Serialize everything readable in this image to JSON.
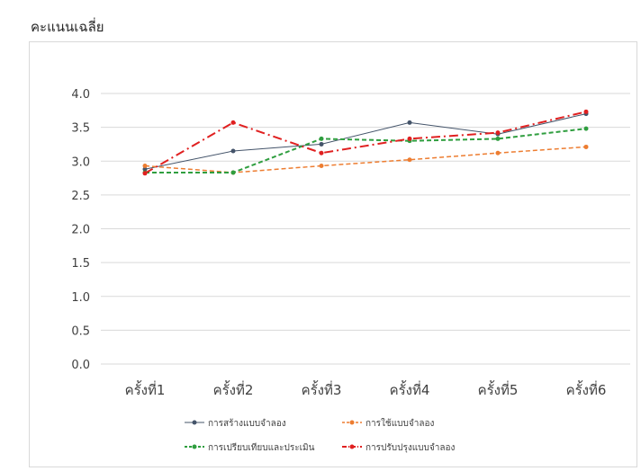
{
  "page": {
    "title": "คะแนนเฉลี่ย"
  },
  "chart_data": {
    "type": "line",
    "title": "",
    "xlabel": "",
    "ylabel": "",
    "categories": [
      "ครั้งที่1",
      "ครั้งที่2",
      "ครั้งที่3",
      "ครั้งที่4",
      "ครั้งที่5",
      "ครั้งที่6"
    ],
    "ylim": [
      0,
      4
    ],
    "yticks": [
      "0.0",
      "0.5",
      "1.0",
      "1.5",
      "2.0",
      "2.5",
      "3.0",
      "3.5",
      "4.0"
    ],
    "ytick_values": [
      0,
      0.5,
      1,
      1.5,
      2,
      2.5,
      3,
      3.5,
      4
    ],
    "grid": true,
    "legend_position": "bottom",
    "series": [
      {
        "name": "การสร้างแบบจำลอง",
        "values": [
          2.88,
          3.15,
          3.25,
          3.57,
          3.4,
          3.7
        ],
        "color": "#44546a",
        "dash": "solid",
        "width": 1
      },
      {
        "name": "การใช้แบบจำลอง",
        "values": [
          2.93,
          2.83,
          2.93,
          3.02,
          3.12,
          3.21
        ],
        "color": "#ed7d31",
        "dash": "dashed",
        "width": 1.5
      },
      {
        "name": "การเปรียบเทียบและประเมิน",
        "values": [
          2.83,
          2.83,
          3.33,
          3.3,
          3.33,
          3.48
        ],
        "color": "#2f9e3f",
        "dash": "dashed",
        "width": 2
      },
      {
        "name": "การปรับปรุงแบบจำลอง",
        "values": [
          2.82,
          3.57,
          3.12,
          3.33,
          3.42,
          3.73
        ],
        "color": "#e02020",
        "dash": "dashdot",
        "width": 2
      }
    ]
  }
}
